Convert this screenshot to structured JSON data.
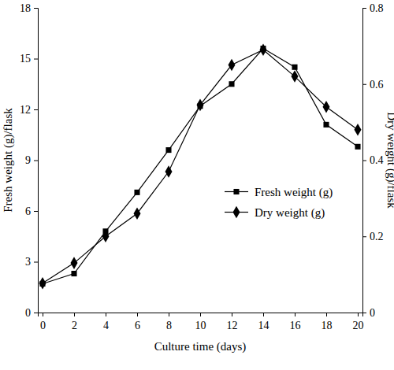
{
  "chart_data": {
    "type": "line",
    "x_label": "Culture time (days)",
    "y_label": "Fresh weight (g)/flask",
    "y2_label": "Dry weight (g)/flask",
    "x": [
      0,
      2,
      4,
      6,
      8,
      10,
      12,
      14,
      16,
      18,
      20
    ],
    "xlim": [
      -0.3,
      20.3
    ],
    "xticks": [
      0,
      2,
      4,
      6,
      8,
      10,
      12,
      14,
      16,
      18,
      20
    ],
    "ylim": [
      0,
      18
    ],
    "yticks": [
      0,
      3,
      6,
      9,
      12,
      15,
      18
    ],
    "y2lim": [
      0,
      0.8
    ],
    "y2ticks": [
      0,
      0.2,
      0.4,
      0.6,
      0.8
    ],
    "legend": "right",
    "series": [
      {
        "name": "Fresh weight (g)",
        "color": "#000000",
        "marker": "square",
        "line_style": "solid",
        "values": [
          1.7,
          2.3,
          4.8,
          7.1,
          9.6,
          12.2,
          13.5,
          15.6,
          14.5,
          11.1,
          9.8
        ]
      },
      {
        "name": "Dry weight (g)",
        "color": "#000000",
        "marker": "diamond",
        "line_style": "solid",
        "axis": "y2",
        "values": [
          0.077,
          0.13,
          0.2,
          0.26,
          0.37,
          0.545,
          0.65,
          0.69,
          0.62,
          0.54,
          0.48
        ]
      }
    ]
  }
}
